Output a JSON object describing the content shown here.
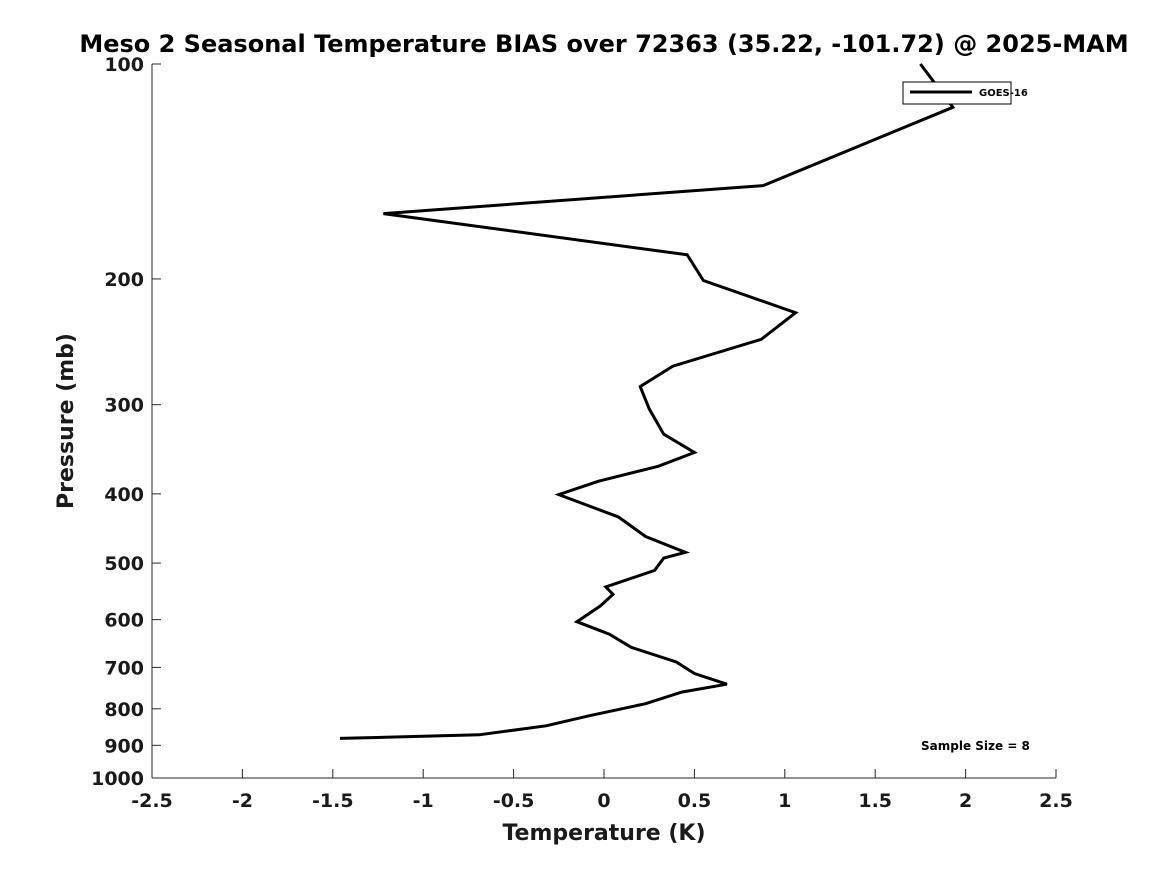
{
  "chart_data": {
    "type": "line",
    "title": "Meso 2 Seasonal Temperature BIAS over 72363 (35.22, -101.72) @ 2025-MAM",
    "xlabel": "Temperature (K)",
    "ylabel": "Pressure (mb)",
    "xlim": [
      -2.5,
      2.5
    ],
    "ylim": [
      100,
      1000
    ],
    "y_scale": "log",
    "y_reversed": true,
    "grid": false,
    "legend_position": "top-right",
    "x_ticks": [
      "-2.5",
      "-2",
      "-1.5",
      "-1",
      "-0.5",
      "0",
      "0.5",
      "1",
      "1.5",
      "2",
      "2.5"
    ],
    "y_ticks": [
      "100",
      "200",
      "300",
      "400",
      "500",
      "600",
      "700",
      "800",
      "900",
      "1000"
    ],
    "annotation": "Sample Size = 8",
    "series": [
      {
        "name": "GOES-16",
        "color": "#000000",
        "x": [
          1.75,
          1.93,
          0.88,
          -1.22,
          0.46,
          0.55,
          1.06,
          0.87,
          0.38,
          0.2,
          0.25,
          0.33,
          0.5,
          0.3,
          -0.03,
          -0.25,
          0.08,
          0.23,
          0.45,
          0.33,
          0.28,
          0.01,
          0.05,
          -0.02,
          -0.15,
          0.03,
          0.15,
          0.4,
          0.5,
          0.68,
          0.43,
          0.23,
          -0.08,
          -0.32,
          -0.69,
          -1.46
        ],
        "y": [
          100,
          115,
          148,
          162,
          185,
          201,
          223,
          243,
          265,
          283,
          304,
          330,
          350,
          366,
          384,
          401,
          431,
          459,
          483,
          492,
          512,
          540,
          553,
          574,
          604,
          629,
          656,
          688,
          714,
          739,
          758,
          787,
          818,
          845,
          870,
          880
        ]
      }
    ]
  }
}
